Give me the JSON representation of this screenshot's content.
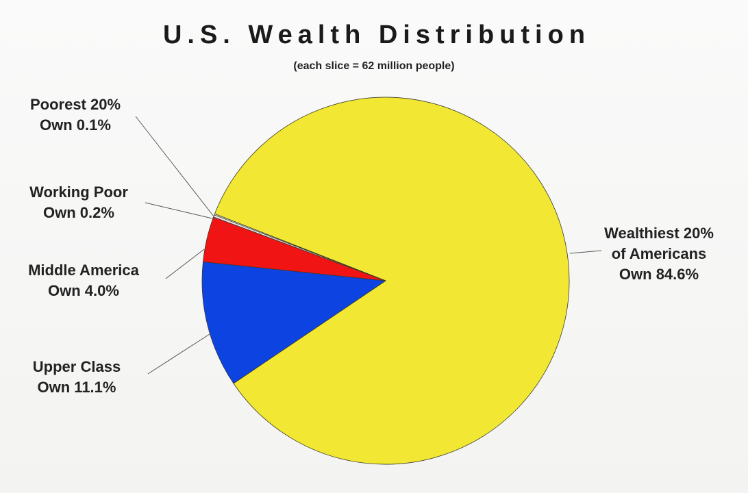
{
  "chart_data": {
    "type": "pie",
    "title": "U.S. Wealth Distribution",
    "subtitle": "(each slice = 62 million people)",
    "slices": [
      {
        "label_line1": "Wealthiest 20%",
        "label_line2": "of Americans",
        "label_line3": "Own 84.6%",
        "value": 84.6,
        "color": "#f2e833"
      },
      {
        "label_line1": "Upper Class",
        "label_line2": "Own 11.1%",
        "value": 11.1,
        "color": "#0d43e0"
      },
      {
        "label_line1": "Middle America",
        "label_line2": "Own 4.0%",
        "value": 4.0,
        "color": "#f01414"
      },
      {
        "label_line1": "Working Poor",
        "label_line2": "Own 0.2%",
        "value": 0.2,
        "color": "#e8e8e8"
      },
      {
        "label_line1": "Poorest 20%",
        "label_line2": "Own 0.1%",
        "value": 0.1,
        "color": "#f8f8f8"
      }
    ],
    "legend": "none"
  }
}
